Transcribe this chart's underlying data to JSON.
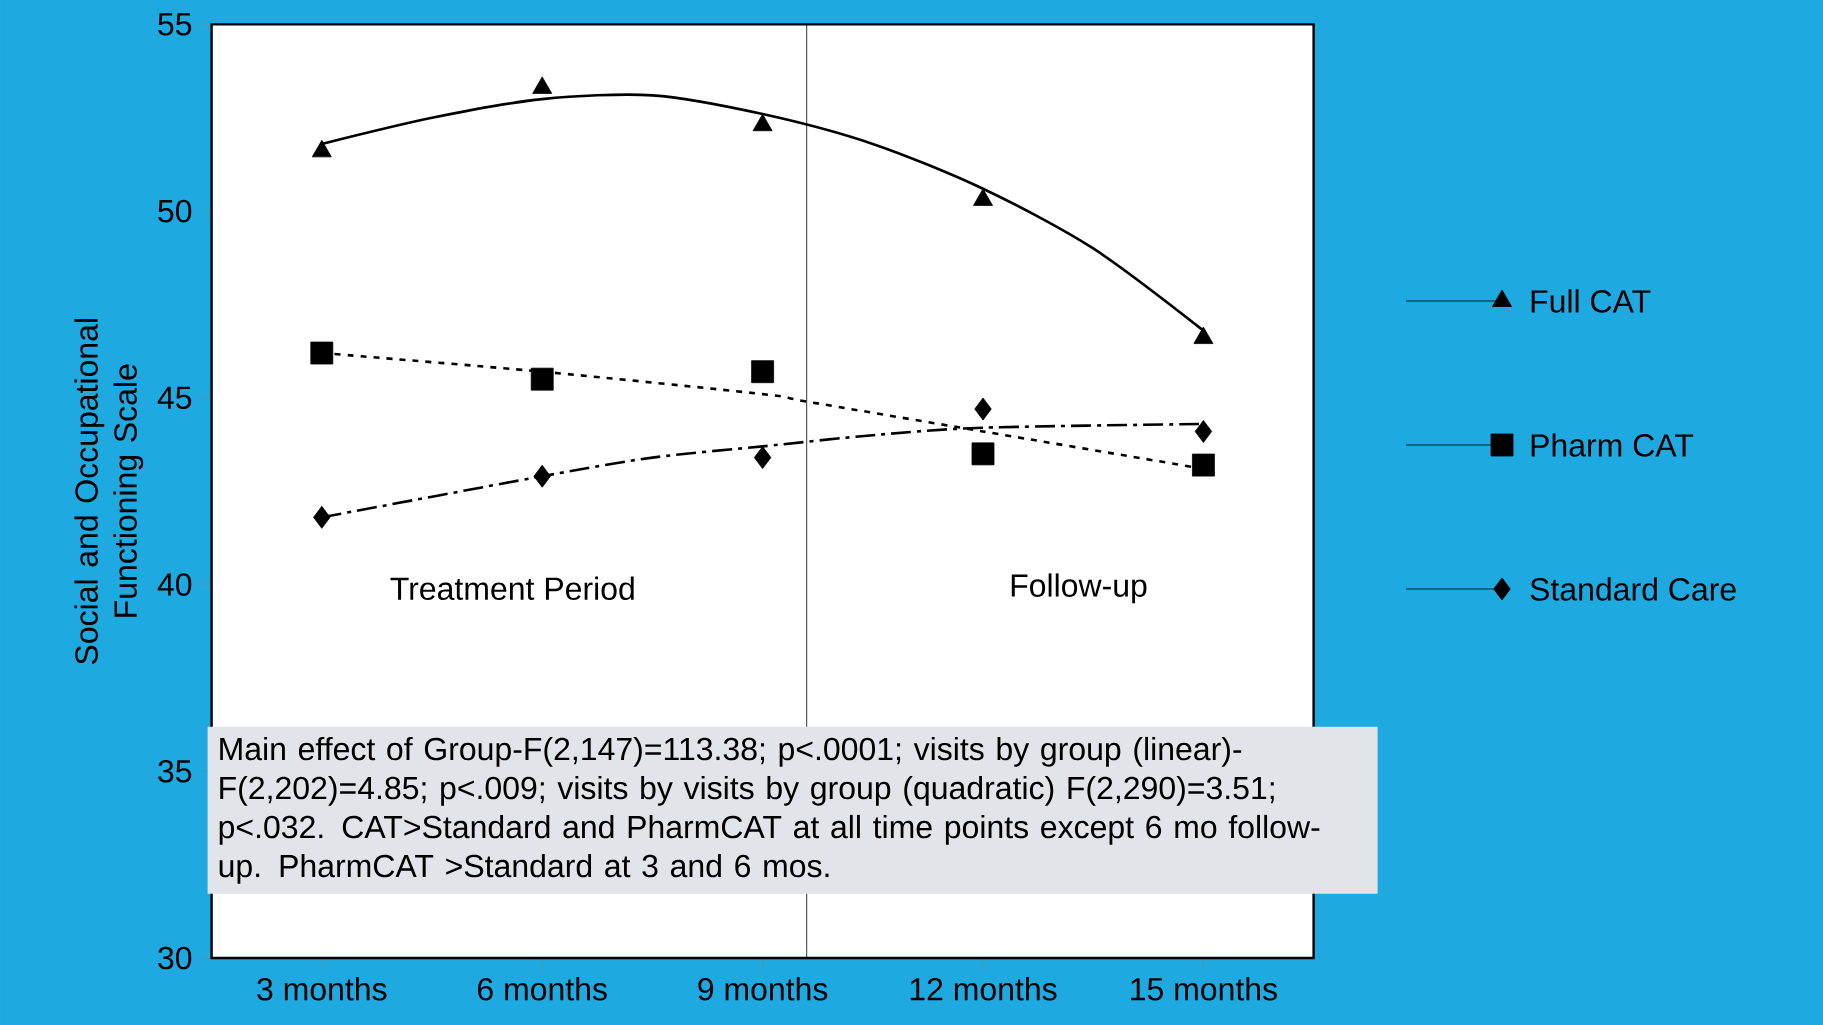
{
  "chart_data": {
    "type": "scatter",
    "ylabel": "Social and Occupational Functioning Scale",
    "xlim": [
      1.5,
      16.5
    ],
    "xticks": [
      {
        "value": 3,
        "label": "3 months"
      },
      {
        "value": 6,
        "label": "6 months"
      },
      {
        "value": 9,
        "label": "9 months"
      },
      {
        "value": 12,
        "label": "12 months"
      },
      {
        "value": 15,
        "label": "15 months"
      }
    ],
    "ylim": [
      30,
      55
    ],
    "yticks": [
      30,
      35,
      40,
      45,
      50,
      55
    ],
    "grid": false,
    "legend": "right",
    "x": [
      3,
      6,
      9,
      12,
      15
    ],
    "series": [
      {
        "name": "Full CAT",
        "color": "#000000",
        "marker": "triangle",
        "values": [
          51.6,
          53.3,
          52.3,
          50.3,
          46.6
        ]
      },
      {
        "name": "Pharm CAT",
        "color": "#000000",
        "marker": "square",
        "values": [
          46.2,
          45.5,
          45.7,
          43.5,
          43.2
        ]
      },
      {
        "name": "Standard Care",
        "color": "#000000",
        "marker": "diamond",
        "values": [
          41.8,
          42.9,
          43.4,
          44.7,
          44.1
        ]
      },
      {
        "type": "line",
        "color": "#000000",
        "marker": "none",
        "line_style": "solid",
        "x": [
          3,
          4.5,
          6,
          7.5,
          9,
          10.5,
          12,
          13.5,
          15
        ],
        "values": [
          51.8,
          52.5,
          53.0,
          53.1,
          52.6,
          51.8,
          50.6,
          49.0,
          46.8
        ]
      },
      {
        "type": "line",
        "color": "#000000",
        "marker": "none",
        "line_style": "dotted",
        "x": [
          3,
          6,
          9,
          9.6,
          12,
          15
        ],
        "values": [
          46.2,
          45.7,
          45.1,
          44.9,
          44.1,
          43.1
        ]
      },
      {
        "type": "line",
        "color": "#000000",
        "marker": "none",
        "line_style": "dashed",
        "x": [
          3,
          6,
          7.5,
          9,
          10.5,
          12,
          15
        ],
        "values": [
          41.8,
          42.9,
          43.4,
          43.7,
          44.0,
          44.2,
          44.3
        ]
      }
    ],
    "ref_lines": [
      {
        "axis": "x",
        "value": 9.6
      }
    ],
    "annotations": [
      "Treatment Period",
      "Follow-up",
      "Main effect of Group-F(2,147)=113.38; p<.0001; visits by group (linear)-F(2,202)=4.85; p<.009; visits by visits by group (quadratic) F(2,290)=3.51; p<.032. CAT>Standard and PharmCAT at all time points except 6 mo follow-up.  PharmCAT >Standard at 3 and 6 mos."
    ]
  }
}
